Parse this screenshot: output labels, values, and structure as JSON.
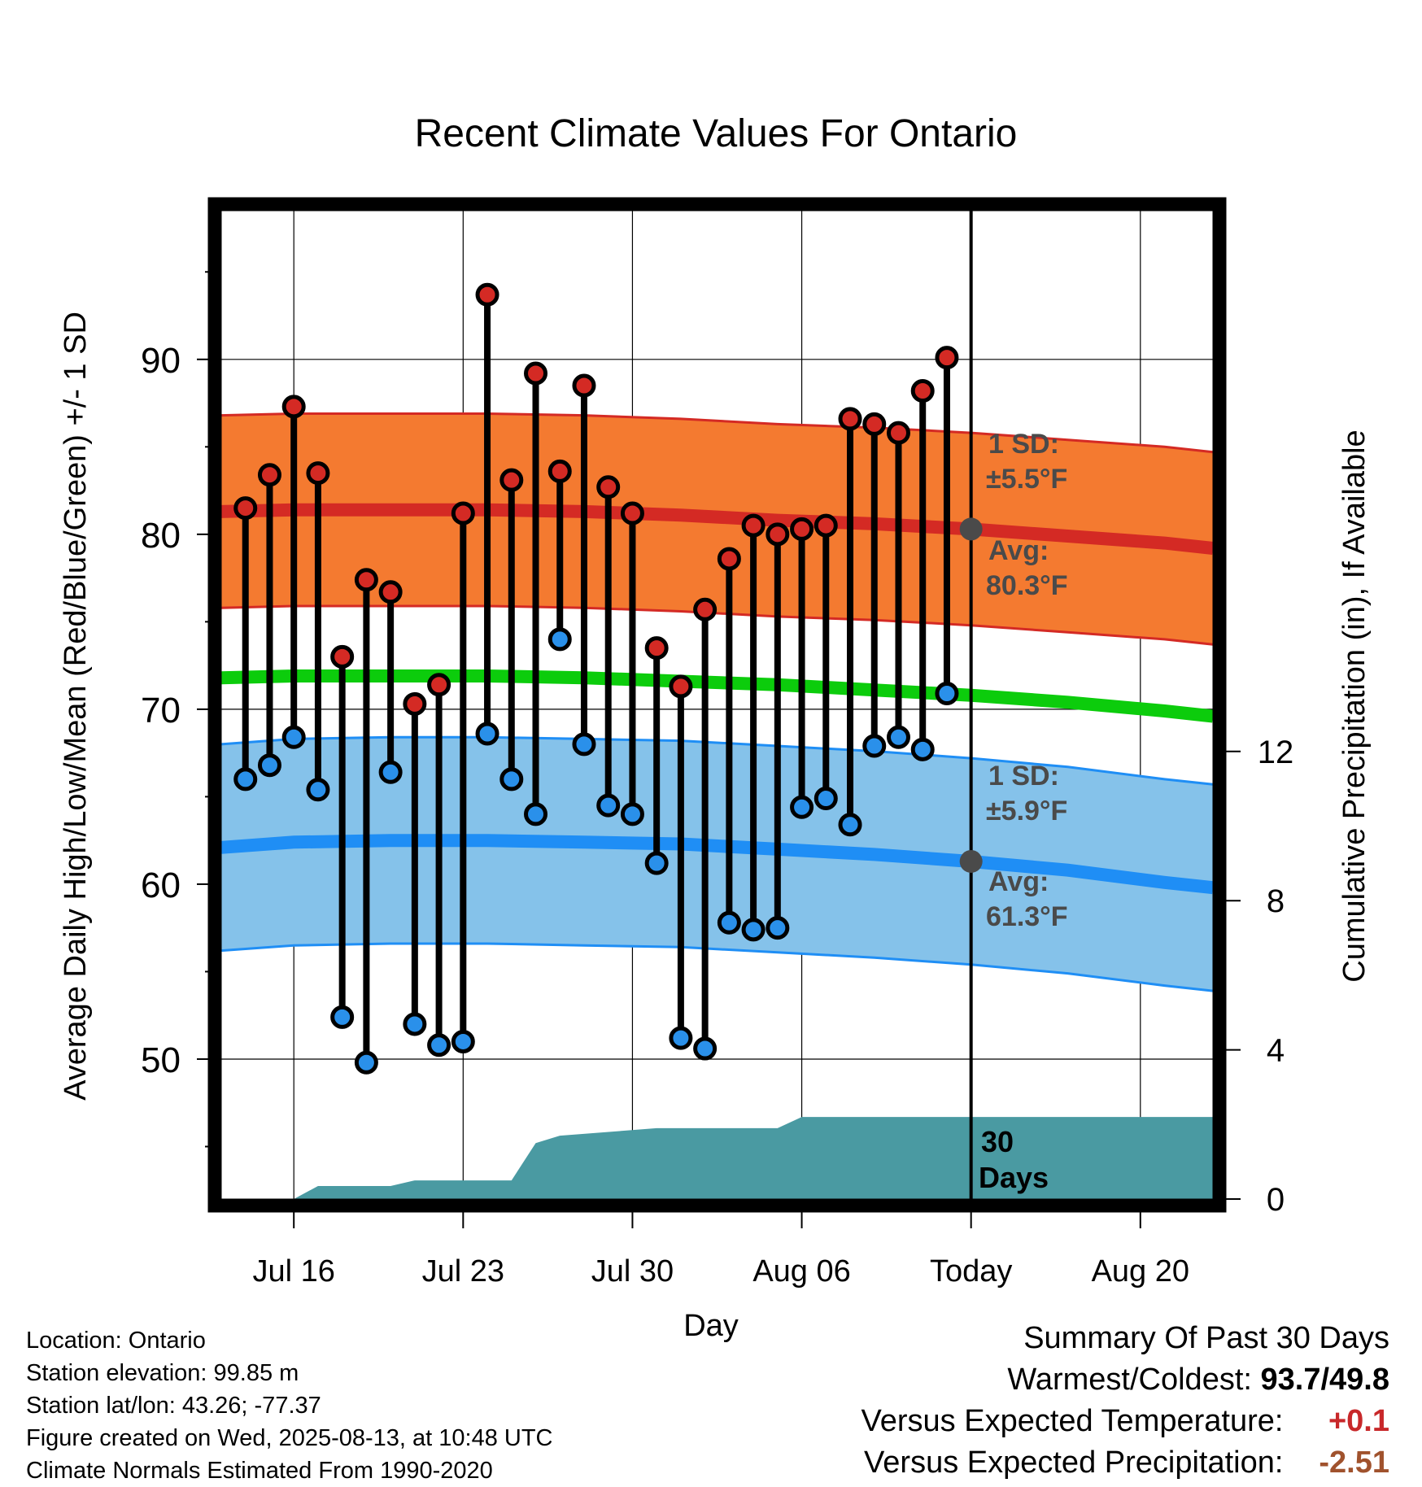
{
  "title": "Recent Climate Values For Ontario",
  "x_axis_label": "Day",
  "y_axis_left_label": "Average Daily High/Low/Mean (Red/Blue/Green) +/- 1 SD",
  "y_axis_right_label": "Cumulative Precipitation (in), If Available",
  "annotations": {
    "high_sd_label": "1 SD:",
    "high_sd_value": "±5.5°F",
    "high_avg_label": "Avg:",
    "high_avg_value": "80.3°F",
    "low_sd_label": "1 SD:",
    "low_sd_value": "±5.9°F",
    "low_avg_label": "Avg:",
    "low_avg_value": "61.3°F",
    "window_label_1": "30",
    "window_label_2": "Days"
  },
  "colors": {
    "high_band": "#f47a30",
    "high_mean": "#d42a24",
    "low_band": "#85c2ea",
    "low_mean": "#1f8ef5",
    "daily_mean": "#0ccc0c",
    "precip": "#4a9aa2",
    "high_marker": "#d42a24",
    "low_marker": "#2a90ea",
    "annotation": "#4a4a4a"
  },
  "info": {
    "location": "Location: Ontario",
    "elevation": "Station elevation: 99.85 m",
    "latlon": "Station lat/lon: 43.26; -77.37",
    "created": "Figure created on Wed, 2025-08-13, at 10:48 UTC",
    "normals": "Climate Normals Estimated From 1990-2020"
  },
  "summary": {
    "heading": "Summary Of Past 30 Days",
    "warm_cold_label": "Warmest/Coldest:",
    "warm_cold_value": "93.7/49.8",
    "temp_label": "Versus Expected Temperature:",
    "temp_value": "+0.1",
    "precip_label": "Versus Expected Precipitation:",
    "precip_value": "-2.51"
  },
  "chart_data": {
    "type": "line",
    "title": "Recent Climate Values For Ontario",
    "xlabel": "Day",
    "ylabel": "Average Daily High/Low/Mean (Red/Blue/Green) +/- 1 SD",
    "y2label": "Cumulative Precipitation (in), If Available",
    "x_range": [
      "2025-07-13",
      "2025-08-23"
    ],
    "ylim": [
      42,
      98.5
    ],
    "y2lim": [
      0,
      26.5
    ],
    "yticks": [
      50,
      60,
      70,
      80,
      90
    ],
    "y2ticks": [
      0,
      4,
      8,
      12
    ],
    "xticks": [
      {
        "date": "2025-07-16",
        "label": "Jul 16"
      },
      {
        "date": "2025-07-23",
        "label": "Jul 23"
      },
      {
        "date": "2025-07-30",
        "label": "Jul 30"
      },
      {
        "date": "2025-08-06",
        "label": "Aug 06"
      },
      {
        "date": "2025-08-13",
        "label": "Today"
      },
      {
        "date": "2025-08-20",
        "label": "Aug 20"
      }
    ],
    "today": "2025-08-13",
    "grid": true,
    "observed": {
      "dates": [
        "2025-07-14",
        "2025-07-15",
        "2025-07-16",
        "2025-07-17",
        "2025-07-18",
        "2025-07-19",
        "2025-07-20",
        "2025-07-21",
        "2025-07-22",
        "2025-07-23",
        "2025-07-24",
        "2025-07-25",
        "2025-07-26",
        "2025-07-27",
        "2025-07-28",
        "2025-07-29",
        "2025-07-30",
        "2025-07-31",
        "2025-08-01",
        "2025-08-02",
        "2025-08-03",
        "2025-08-04",
        "2025-08-05",
        "2025-08-06",
        "2025-08-07",
        "2025-08-08",
        "2025-08-09",
        "2025-08-10",
        "2025-08-11",
        "2025-08-12"
      ],
      "high": [
        81.5,
        83.4,
        87.3,
        83.5,
        73.0,
        77.4,
        76.7,
        70.3,
        71.4,
        81.2,
        93.7,
        83.1,
        89.2,
        83.6,
        88.5,
        82.7,
        81.2,
        73.5,
        71.3,
        75.7,
        78.6,
        80.5,
        80.0,
        80.3,
        80.5,
        86.6,
        86.3,
        85.8,
        88.2,
        90.1
      ],
      "low": [
        66.0,
        66.8,
        68.4,
        65.4,
        52.4,
        49.8,
        66.4,
        52.0,
        50.8,
        51.0,
        68.6,
        66.0,
        64.0,
        74.0,
        68.0,
        64.5,
        64.0,
        61.2,
        51.2,
        50.6,
        57.8,
        57.4,
        57.5,
        64.4,
        64.9,
        63.4,
        67.9,
        68.4,
        67.7,
        70.9
      ]
    },
    "normals": {
      "dates": [
        "2025-07-13",
        "2025-07-16",
        "2025-07-20",
        "2025-07-24",
        "2025-07-28",
        "2025-08-01",
        "2025-08-05",
        "2025-08-09",
        "2025-08-13",
        "2025-08-17",
        "2025-08-21",
        "2025-08-23"
      ],
      "high_mean": [
        81.3,
        81.4,
        81.4,
        81.4,
        81.3,
        81.1,
        80.8,
        80.6,
        80.3,
        79.9,
        79.5,
        79.2
      ],
      "high_sd": 5.5,
      "mean": [
        71.8,
        71.9,
        71.9,
        71.9,
        71.8,
        71.6,
        71.4,
        71.1,
        70.8,
        70.4,
        69.9,
        69.6
      ],
      "low_mean": [
        62.1,
        62.4,
        62.5,
        62.5,
        62.4,
        62.3,
        62.0,
        61.7,
        61.3,
        60.8,
        60.1,
        59.8
      ],
      "low_sd": 5.9
    },
    "precip": {
      "dates": [
        "2025-07-13",
        "2025-07-16",
        "2025-07-17",
        "2025-07-20",
        "2025-07-21",
        "2025-07-25",
        "2025-07-26",
        "2025-07-27",
        "2025-07-31",
        "2025-08-05",
        "2025-08-06",
        "2025-08-12"
      ],
      "cumulative": [
        0.0,
        0.0,
        0.35,
        0.35,
        0.5,
        0.5,
        1.5,
        1.7,
        1.9,
        1.9,
        2.2,
        2.2
      ]
    }
  }
}
